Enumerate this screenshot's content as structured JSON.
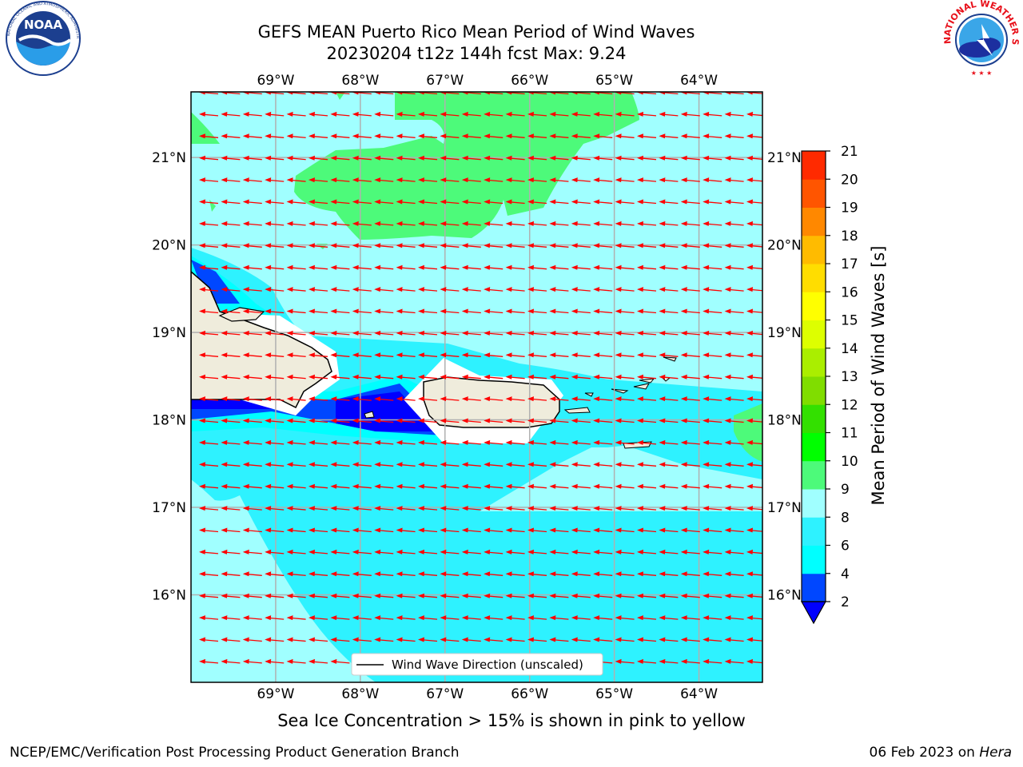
{
  "header": {
    "title_line1": "GEFS MEAN Puerto Rico Mean Period of Wind Waves",
    "title_line2": "20230204 t12z 144h fcst   Max: 9.24"
  },
  "logos": {
    "left": {
      "text": "NOAA",
      "ring_text": "NATIONAL OCEANIC AND ATMOSPHERIC ADMINISTRATION · U.S. DEPARTMENT OF COMMERCE",
      "icon": "noaa-logo"
    },
    "right": {
      "ring_text": "NATIONAL WEATHER SERVICE",
      "icon": "nws-logo"
    }
  },
  "map": {
    "lon_labels": [
      "69°W",
      "68°W",
      "67°W",
      "66°W",
      "65°W",
      "64°W"
    ],
    "lat_labels": [
      "21°N",
      "20°N",
      "19°N",
      "18°N",
      "17°N",
      "16°N"
    ],
    "lon_range": [
      -70,
      -63.25
    ],
    "lat_range": [
      15,
      21.75
    ],
    "arrow_direction": "westward",
    "arrow_color": "#ff0000",
    "legend_label": "Wind Wave Direction (unscaled)"
  },
  "colorbar": {
    "label": "Mean Period of Wind Waves [s]",
    "ticks": [
      "2",
      "4",
      "6",
      "8",
      "9",
      "10",
      "11",
      "12",
      "13",
      "14",
      "15",
      "16",
      "17",
      "18",
      "19",
      "20",
      "21"
    ],
    "colors": [
      "#0047ff",
      "#00ffff",
      "#2ef2ff",
      "#a0ffff",
      "#4dfa7a",
      "#00ff00",
      "#33e000",
      "#80dd00",
      "#aaee00",
      "#ddff00",
      "#ffff00",
      "#ffdd00",
      "#ffbb00",
      "#ff8800",
      "#ff5500",
      "#ff2a00",
      "#ff0000"
    ],
    "underflow_color": "#0000ff"
  },
  "footer": {
    "sea_ice_note": "Sea Ice Concentration > 15% is shown in pink to yellow",
    "left": "NCEP/EMC/Verification Post Processing Product Generation Branch",
    "right_date": "06 Feb 2023 on ",
    "right_host": "Hera"
  }
}
